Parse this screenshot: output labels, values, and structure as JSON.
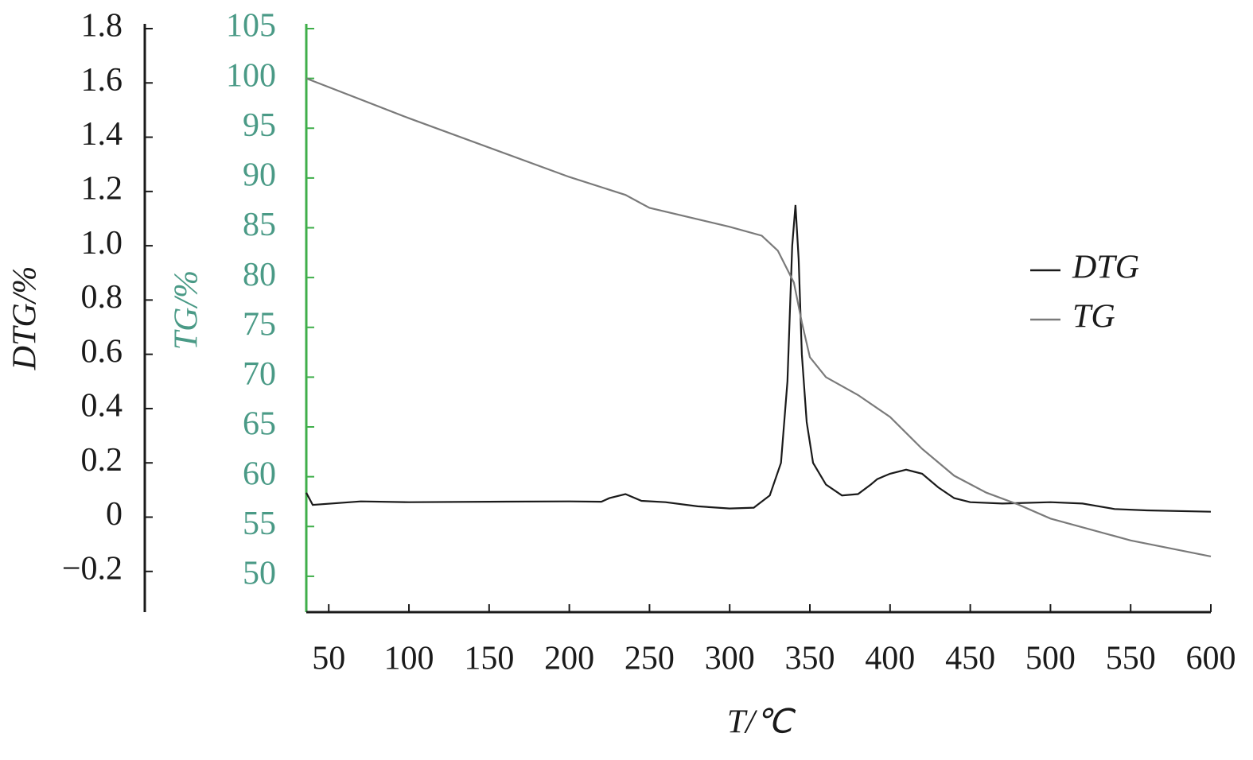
{
  "chart_data": {
    "type": "line",
    "xlabel": "T/℃",
    "ylabel": "DTG/%",
    "y2label": "TG/%",
    "xlim": [
      36,
      600
    ],
    "xticks": [
      50,
      100,
      150,
      200,
      250,
      300,
      350,
      400,
      450,
      500,
      550,
      600
    ],
    "ylim": [
      -0.35,
      1.8
    ],
    "yticks": [
      1.8,
      1.6,
      1.4,
      1.2,
      {
        "value": 1,
        "label": "1.0"
      },
      0.8,
      0.6,
      0.4,
      0.2,
      0,
      {
        "value": -0.2,
        "label": "−0.2"
      }
    ],
    "y2lim": [
      46.4,
      105
    ],
    "y2ticks": [
      105,
      100,
      95,
      90,
      85,
      80,
      75,
      70,
      65,
      60,
      55,
      50
    ],
    "y2_color": "#4a9a86",
    "y2_axis_color": "#3fae4a",
    "legend": "right",
    "series": [
      {
        "name": "DTG",
        "color": "#1a1a1a",
        "x": [
          36,
          40,
          70,
          100,
          150,
          200,
          220,
          225,
          235,
          245,
          260,
          280,
          300,
          315,
          325,
          332,
          336,
          339,
          341,
          343,
          345,
          348,
          352,
          360,
          370,
          380,
          388,
          392,
          396,
          400,
          410,
          420,
          430,
          440,
          450,
          470,
          500,
          520,
          540,
          560,
          600
        ],
        "values": [
          0.09,
          0.045,
          0.058,
          0.055,
          0.057,
          0.058,
          0.057,
          0.07,
          0.085,
          0.06,
          0.055,
          0.04,
          0.032,
          0.035,
          0.08,
          0.2,
          0.5,
          1.0,
          1.15,
          0.95,
          0.6,
          0.35,
          0.2,
          0.12,
          0.08,
          0.085,
          0.12,
          0.14,
          0.15,
          0.16,
          0.175,
          0.16,
          0.11,
          0.07,
          0.055,
          0.05,
          0.055,
          0.05,
          0.03,
          0.025,
          0.02
        ]
      },
      {
        "name": "TG",
        "color": "#7a7a7a",
        "axis": "y2",
        "x": [
          36,
          100,
          200,
          235,
          250,
          300,
          320,
          330,
          340,
          345,
          350,
          360,
          380,
          400,
          420,
          440,
          460,
          480,
          500,
          550,
          600
        ],
        "values": [
          100,
          96,
          90.1,
          88.3,
          87,
          85.1,
          84.2,
          82.7,
          79.5,
          75.5,
          72,
          70,
          68.2,
          66,
          62.8,
          60.1,
          58.4,
          57.2,
          55.8,
          53.6,
          52
        ]
      }
    ]
  }
}
